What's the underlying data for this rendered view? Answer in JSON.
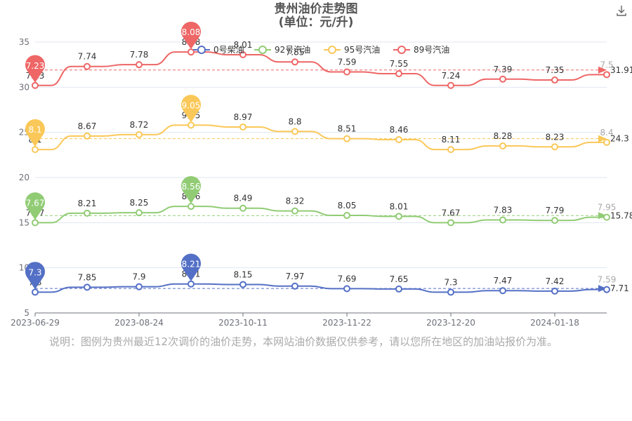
{
  "title_line1": "贵州油价走势图",
  "title_line2": "(单位：元/升)",
  "note": "说明：图例为贵州最近12次调价的油价走势，本网站油价数据仅供参考，请以您所在地区的加油站报价为准。",
  "chart_data": {
    "type": "line",
    "x": [
      "2023-06-29",
      "2023-07-27",
      "2023-08-24",
      "2023-09-14",
      "2023-10-11",
      "2023-10-31",
      "2023-11-22",
      "2023-12-05",
      "2023-12-20",
      "2024-01-03",
      "2024-01-18",
      "2024-01-31"
    ],
    "xticks": [
      "2023-06-29",
      "2023-08-24",
      "2023-10-11",
      "2023-11-22",
      "2023-12-20",
      "2024-01-18"
    ],
    "ylim": [
      5,
      35
    ],
    "yticks": [
      5,
      10,
      15,
      20,
      25,
      30,
      35
    ],
    "grid": true,
    "legend_position": "top-right",
    "series": [
      {
        "name": "0号柴油",
        "color": "#5470c6",
        "labels": [
          7.3,
          7.85,
          7.9,
          8.21,
          8.15,
          7.97,
          7.69,
          7.65,
          7.3,
          7.47,
          7.42,
          7.59
        ],
        "values": [
          7.3,
          7.85,
          7.9,
          8.21,
          8.15,
          7.97,
          7.69,
          7.65,
          7.3,
          7.47,
          7.42,
          7.59
        ],
        "max_pin": "8.21",
        "min_pin": "7.3",
        "avg": 7.71
      },
      {
        "name": "92号汽油",
        "color": "#91cc75",
        "labels": [
          7.67,
          8.21,
          8.25,
          8.56,
          8.49,
          8.32,
          8.05,
          8.01,
          7.67,
          7.83,
          7.79,
          7.95
        ],
        "values": [
          15,
          16.05,
          16.1,
          16.8,
          16.6,
          16.3,
          15.8,
          15.7,
          15,
          15.3,
          15.25,
          15.6
        ],
        "max_pin": "8.56",
        "min_pin": "7.67",
        "avg": 15.78
      },
      {
        "name": "95号汽油",
        "color": "#fac858",
        "labels": [
          8.1,
          8.67,
          8.72,
          9.05,
          8.97,
          8.8,
          8.51,
          8.46,
          8.11,
          8.28,
          8.23,
          8.4
        ],
        "values": [
          23.1,
          24.6,
          24.75,
          25.8,
          25.6,
          25.1,
          24.3,
          24.2,
          23.1,
          23.5,
          23.4,
          23.9
        ],
        "max_pin": "9.05",
        "min_pin": "8.1",
        "avg": 24.3
      },
      {
        "name": "89号汽油",
        "color": "#ee6666",
        "labels": [
          7.23,
          7.74,
          7.78,
          8.08,
          8.01,
          7.85,
          7.59,
          7.55,
          7.24,
          7.39,
          7.35,
          7.5
        ],
        "values": [
          30.2,
          32.3,
          32.5,
          33.9,
          33.6,
          32.8,
          31.7,
          31.5,
          30.2,
          30.9,
          30.8,
          31.4
        ],
        "max_pin": "8.08",
        "min_pin": "7.23",
        "avg": 31.91
      }
    ]
  }
}
